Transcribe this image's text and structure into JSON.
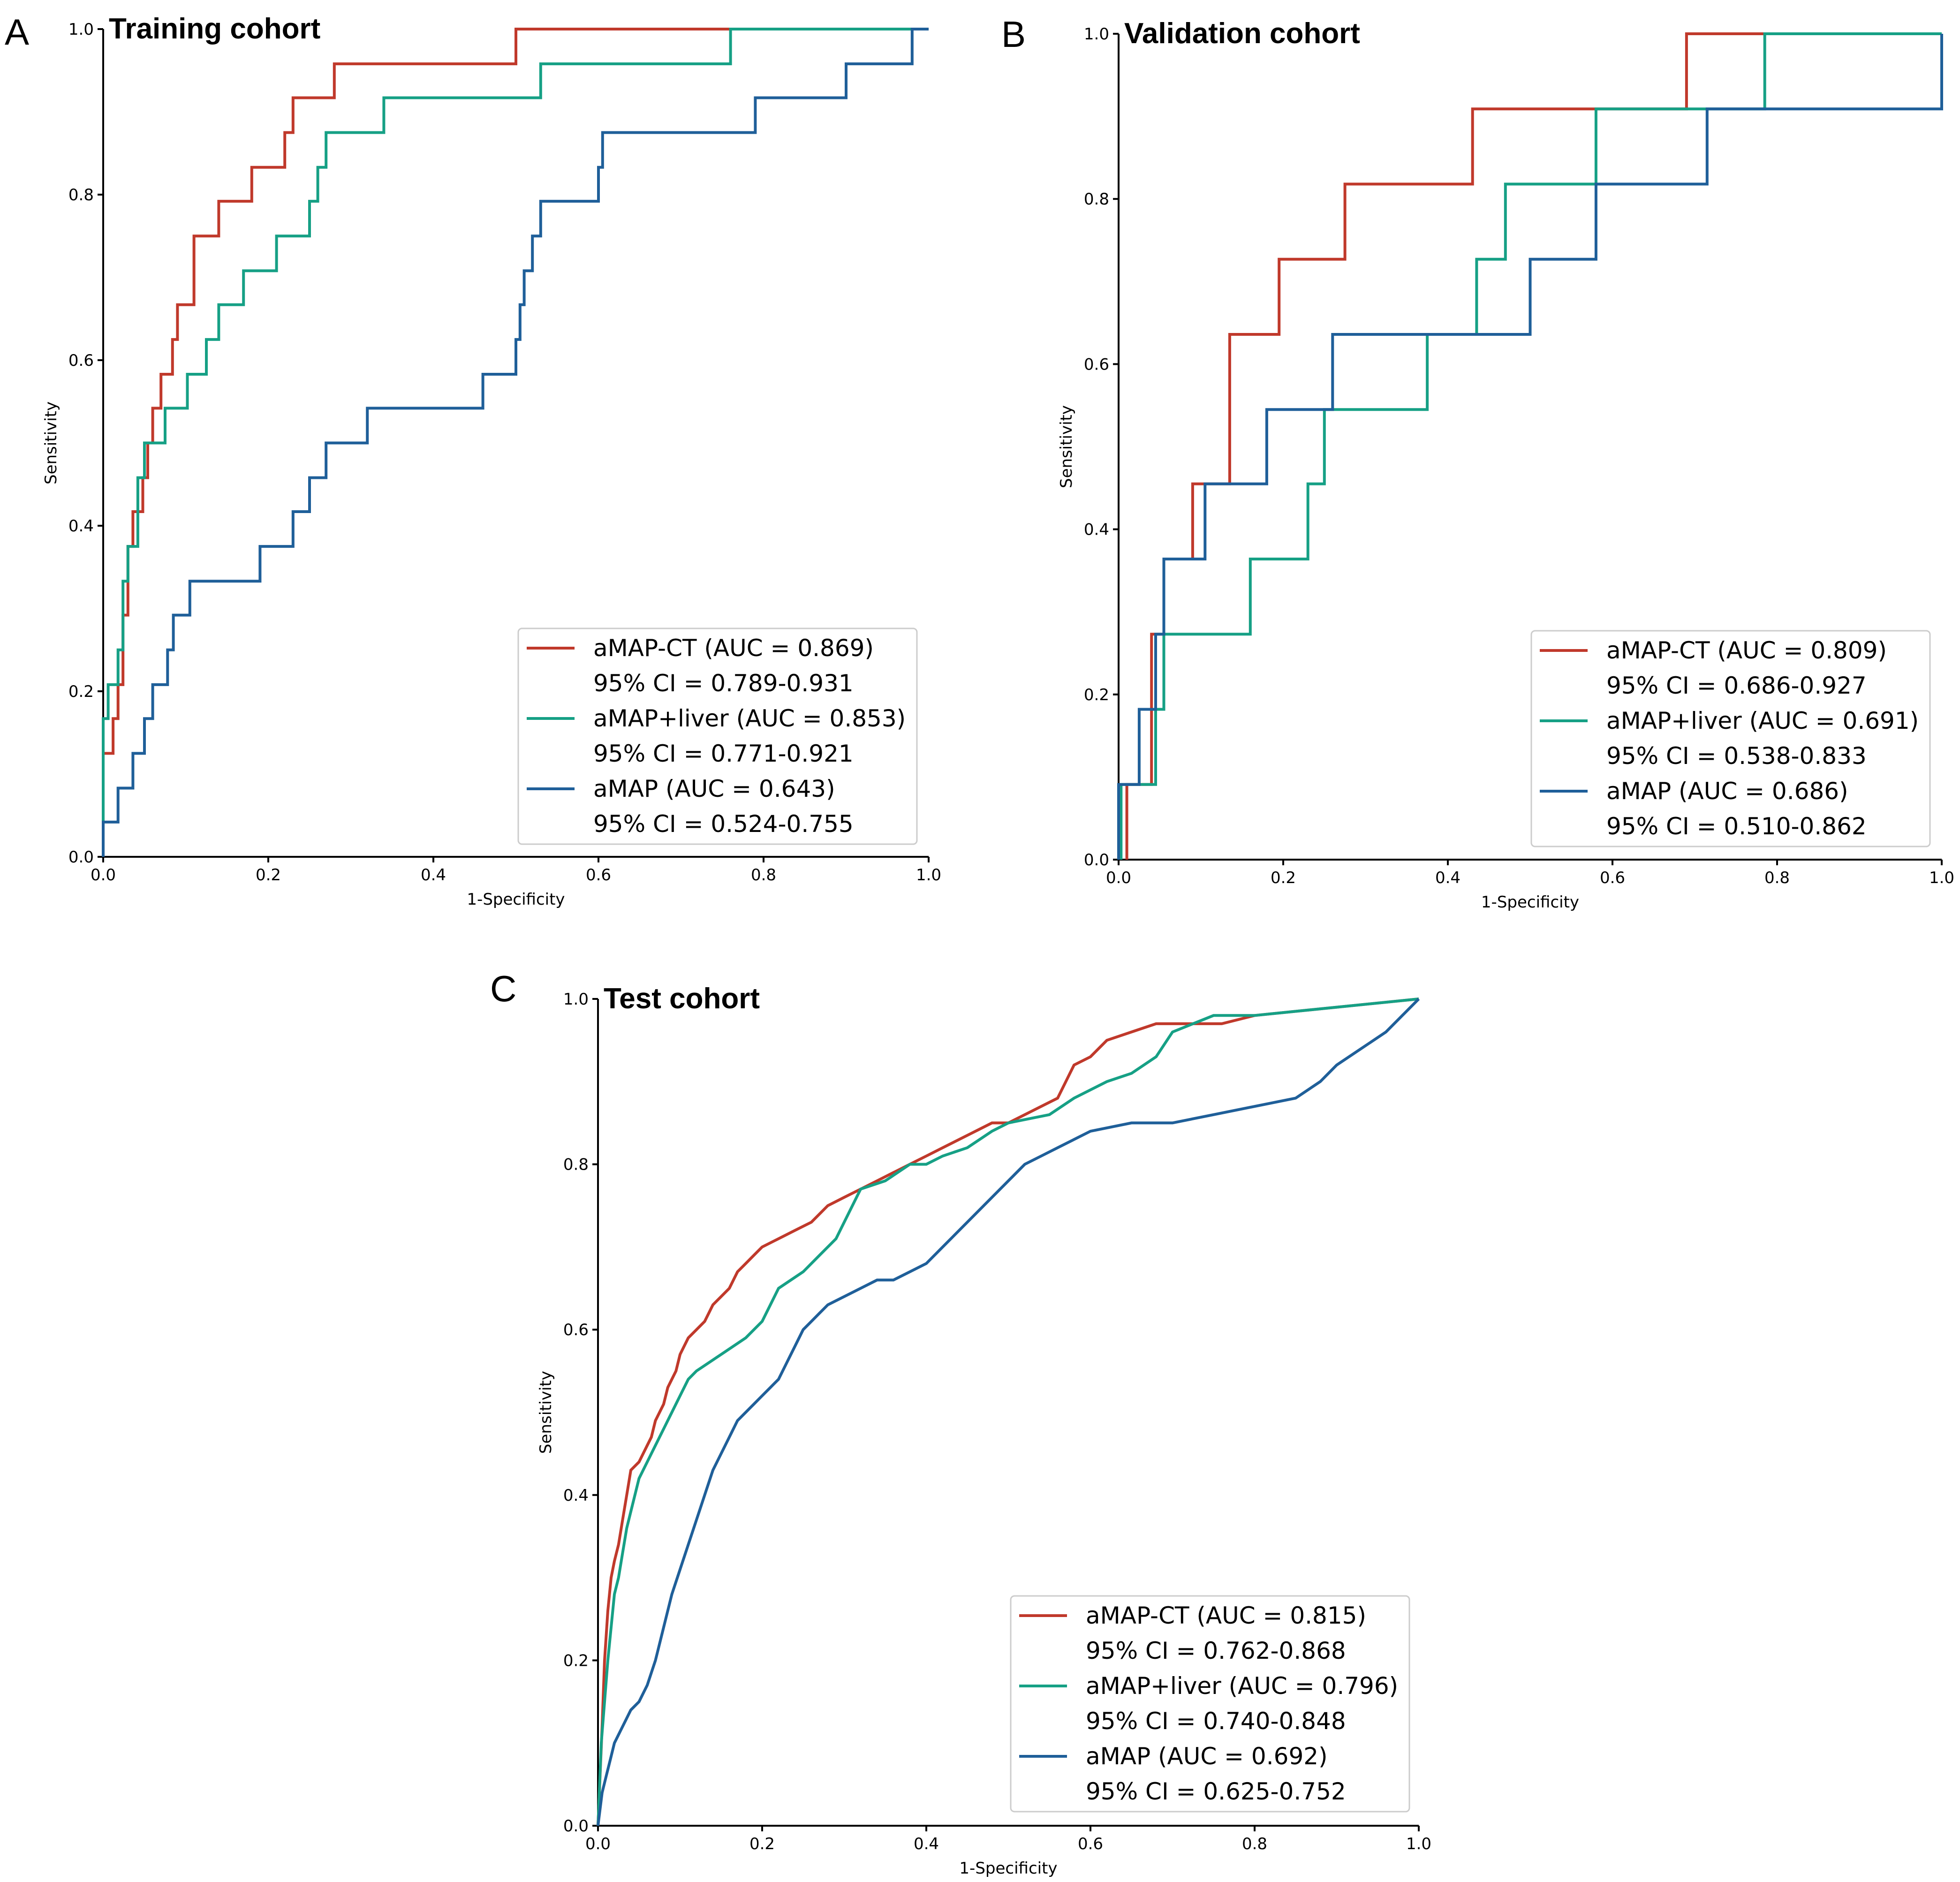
{
  "chart_data": [
    {
      "type": "line",
      "panel_label": "A",
      "title": "Training cohort",
      "xlabel": "1-Specificity",
      "ylabel": "Sensitivity",
      "xlim": [
        0,
        1
      ],
      "ylim": [
        0,
        1
      ],
      "xticks": [
        "0.0",
        "0.2",
        "0.4",
        "0.6",
        "0.8",
        "1.0"
      ],
      "yticks": [
        "0.0",
        "0.2",
        "0.4",
        "0.6",
        "0.8",
        "1.0"
      ],
      "grid": false,
      "legend_position": "lower-right",
      "series": [
        {
          "name": "aMAP-CT (AUC = 0.869)",
          "ci": "95% CI = 0.789-0.931",
          "color": "#c0392b",
          "x": [
            0,
            0,
            0.012,
            0.012,
            0.018,
            0.018,
            0.024,
            0.024,
            0.03,
            0.03,
            0.036,
            0.036,
            0.048,
            0.048,
            0.054,
            0.054,
            0.06,
            0.06,
            0.07,
            0.07,
            0.084,
            0.084,
            0.09,
            0.09,
            0.11,
            0.11,
            0.14,
            0.14,
            0.18,
            0.18,
            0.22,
            0.22,
            0.23,
            0.23,
            0.28,
            0.28,
            0.5,
            0.5,
            0.8,
            0.8,
            1.0
          ],
          "y": [
            0,
            0.125,
            0.125,
            0.167,
            0.167,
            0.208,
            0.208,
            0.292,
            0.292,
            0.375,
            0.375,
            0.417,
            0.417,
            0.458,
            0.458,
            0.5,
            0.5,
            0.542,
            0.542,
            0.583,
            0.583,
            0.625,
            0.625,
            0.667,
            0.667,
            0.75,
            0.75,
            0.792,
            0.792,
            0.833,
            0.833,
            0.875,
            0.875,
            0.917,
            0.917,
            0.958,
            0.958,
            1.0,
            1.0,
            1.0,
            1.0
          ]
        },
        {
          "name": "aMAP+liver (AUC = 0.853)",
          "ci": "95% CI = 0.771-0.921",
          "color": "#16a085",
          "x": [
            0,
            0,
            0.006,
            0.006,
            0.018,
            0.018,
            0.024,
            0.024,
            0.03,
            0.03,
            0.042,
            0.042,
            0.05,
            0.05,
            0.075,
            0.075,
            0.102,
            0.102,
            0.125,
            0.125,
            0.14,
            0.14,
            0.17,
            0.17,
            0.21,
            0.21,
            0.25,
            0.25,
            0.26,
            0.26,
            0.27,
            0.27,
            0.34,
            0.34,
            0.53,
            0.53,
            0.76,
            0.76,
            1.0
          ],
          "y": [
            0,
            0.167,
            0.167,
            0.208,
            0.208,
            0.25,
            0.25,
            0.333,
            0.333,
            0.375,
            0.375,
            0.458,
            0.458,
            0.5,
            0.5,
            0.542,
            0.542,
            0.583,
            0.583,
            0.625,
            0.625,
            0.667,
            0.667,
            0.708,
            0.708,
            0.75,
            0.75,
            0.792,
            0.792,
            0.833,
            0.833,
            0.875,
            0.875,
            0.917,
            0.917,
            0.958,
            0.958,
            1.0,
            1.0
          ]
        },
        {
          "name": "aMAP (AUC = 0.643)",
          "ci": "95% CI = 0.524-0.755",
          "color": "#1f5f99",
          "x": [
            0,
            0,
            0.018,
            0.018,
            0.036,
            0.036,
            0.05,
            0.05,
            0.06,
            0.06,
            0.078,
            0.078,
            0.085,
            0.085,
            0.105,
            0.105,
            0.19,
            0.19,
            0.23,
            0.23,
            0.25,
            0.25,
            0.27,
            0.27,
            0.32,
            0.32,
            0.46,
            0.46,
            0.5,
            0.5,
            0.505,
            0.505,
            0.51,
            0.51,
            0.52,
            0.52,
            0.53,
            0.53,
            0.6,
            0.6,
            0.605,
            0.605,
            0.79,
            0.79,
            0.9,
            0.9,
            0.98,
            0.98,
            1.0
          ],
          "y": [
            0,
            0.042,
            0.042,
            0.083,
            0.083,
            0.125,
            0.125,
            0.167,
            0.167,
            0.208,
            0.208,
            0.25,
            0.25,
            0.292,
            0.292,
            0.333,
            0.333,
            0.375,
            0.375,
            0.417,
            0.417,
            0.458,
            0.458,
            0.5,
            0.5,
            0.542,
            0.542,
            0.583,
            0.583,
            0.625,
            0.625,
            0.667,
            0.667,
            0.708,
            0.708,
            0.75,
            0.75,
            0.792,
            0.792,
            0.833,
            0.833,
            0.875,
            0.875,
            0.917,
            0.917,
            0.958,
            0.958,
            1.0,
            1.0
          ]
        }
      ]
    },
    {
      "type": "line",
      "panel_label": "B",
      "title": "Validation cohort",
      "xlabel": "1-Specificity",
      "ylabel": "Sensitivity",
      "xlim": [
        0,
        1
      ],
      "ylim": [
        0,
        1
      ],
      "xticks": [
        "0.0",
        "0.2",
        "0.4",
        "0.6",
        "0.8",
        "1.0"
      ],
      "yticks": [
        "0.0",
        "0.2",
        "0.4",
        "0.6",
        "0.8",
        "1.0"
      ],
      "grid": false,
      "legend_position": "lower-right",
      "series": [
        {
          "name": "aMAP-CT (AUC = 0.809)",
          "ci": "95% CI = 0.686-0.927",
          "color": "#c0392b",
          "x": [
            0.01,
            0.01,
            0.04,
            0.04,
            0.055,
            0.055,
            0.09,
            0.09,
            0.135,
            0.135,
            0.195,
            0.195,
            0.275,
            0.275,
            0.43,
            0.43,
            0.69,
            0.69,
            1.0
          ],
          "y": [
            0,
            0.091,
            0.091,
            0.273,
            0.273,
            0.364,
            0.364,
            0.455,
            0.455,
            0.636,
            0.636,
            0.727,
            0.727,
            0.818,
            0.818,
            0.909,
            0.909,
            1.0,
            1.0
          ]
        },
        {
          "name": "aMAP+liver (AUC = 0.691)",
          "ci": "95% CI = 0.538-0.833",
          "color": "#16a085",
          "x": [
            0.003,
            0.003,
            0.045,
            0.045,
            0.055,
            0.055,
            0.16,
            0.16,
            0.23,
            0.23,
            0.25,
            0.25,
            0.375,
            0.375,
            0.435,
            0.435,
            0.47,
            0.47,
            0.58,
            0.58,
            0.785,
            0.785,
            1.0
          ],
          "y": [
            0,
            0.091,
            0.091,
            0.182,
            0.182,
            0.273,
            0.273,
            0.364,
            0.364,
            0.455,
            0.455,
            0.545,
            0.545,
            0.636,
            0.636,
            0.727,
            0.727,
            0.818,
            0.818,
            0.909,
            0.909,
            1.0,
            1.0
          ]
        },
        {
          "name": "aMAP (AUC = 0.686)",
          "ci": "95% CI = 0.510-0.862",
          "color": "#1f5f99",
          "x": [
            0,
            0,
            0.025,
            0.025,
            0.045,
            0.045,
            0.055,
            0.055,
            0.105,
            0.105,
            0.18,
            0.18,
            0.26,
            0.26,
            0.5,
            0.5,
            0.58,
            0.58,
            0.715,
            0.715,
            1.0,
            1.0
          ],
          "y": [
            0,
            0.091,
            0.091,
            0.182,
            0.182,
            0.273,
            0.273,
            0.364,
            0.364,
            0.455,
            0.455,
            0.545,
            0.545,
            0.636,
            0.636,
            0.727,
            0.727,
            0.818,
            0.818,
            0.909,
            0.909,
            1.0
          ]
        }
      ]
    },
    {
      "type": "line",
      "panel_label": "C",
      "title": "Test cohort",
      "xlabel": "1-Specificity",
      "ylabel": "Sensitivity",
      "xlim": [
        0,
        1
      ],
      "ylim": [
        0,
        1
      ],
      "xticks": [
        "0.0",
        "0.2",
        "0.4",
        "0.6",
        "0.8",
        "1.0"
      ],
      "yticks": [
        "0.0",
        "0.2",
        "0.4",
        "0.6",
        "0.8",
        "1.0"
      ],
      "grid": false,
      "legend_position": "lower-right",
      "series": [
        {
          "name": "aMAP-CT (AUC = 0.815)",
          "ci": "95% CI = 0.762-0.868",
          "color": "#c0392b",
          "x": [
            0,
            0.005,
            0.008,
            0.012,
            0.016,
            0.02,
            0.025,
            0.03,
            0.035,
            0.04,
            0.05,
            0.06,
            0.065,
            0.07,
            0.075,
            0.08,
            0.085,
            0.09,
            0.095,
            0.1,
            0.11,
            0.12,
            0.13,
            0.14,
            0.15,
            0.16,
            0.17,
            0.18,
            0.19,
            0.2,
            0.22,
            0.24,
            0.26,
            0.28,
            0.3,
            0.32,
            0.34,
            0.36,
            0.38,
            0.4,
            0.42,
            0.44,
            0.46,
            0.48,
            0.5,
            0.52,
            0.54,
            0.56,
            0.57,
            0.58,
            0.6,
            0.62,
            0.65,
            0.68,
            0.72,
            0.76,
            0.8,
            1.0
          ],
          "y": [
            0,
            0.12,
            0.2,
            0.26,
            0.3,
            0.32,
            0.34,
            0.37,
            0.4,
            0.43,
            0.44,
            0.46,
            0.47,
            0.49,
            0.5,
            0.51,
            0.53,
            0.54,
            0.55,
            0.57,
            0.59,
            0.6,
            0.61,
            0.63,
            0.64,
            0.65,
            0.67,
            0.68,
            0.69,
            0.7,
            0.71,
            0.72,
            0.73,
            0.75,
            0.76,
            0.77,
            0.78,
            0.79,
            0.8,
            0.81,
            0.82,
            0.83,
            0.84,
            0.85,
            0.85,
            0.86,
            0.87,
            0.88,
            0.9,
            0.92,
            0.93,
            0.95,
            0.96,
            0.97,
            0.97,
            0.97,
            0.98,
            1.0
          ]
        },
        {
          "name": "aMAP+liver (AUC = 0.796)",
          "ci": "95% CI = 0.740-0.848",
          "color": "#16a085",
          "x": [
            0,
            0.004,
            0.008,
            0.012,
            0.016,
            0.02,
            0.025,
            0.03,
            0.035,
            0.04,
            0.05,
            0.06,
            0.07,
            0.08,
            0.09,
            0.1,
            0.11,
            0.12,
            0.15,
            0.18,
            0.2,
            0.22,
            0.25,
            0.27,
            0.29,
            0.3,
            0.32,
            0.35,
            0.38,
            0.4,
            0.42,
            0.45,
            0.48,
            0.5,
            0.55,
            0.58,
            0.6,
            0.62,
            0.65,
            0.68,
            0.7,
            0.75,
            0.8,
            1.0
          ],
          "y": [
            0,
            0.1,
            0.15,
            0.2,
            0.24,
            0.28,
            0.3,
            0.33,
            0.36,
            0.38,
            0.42,
            0.44,
            0.46,
            0.48,
            0.5,
            0.52,
            0.54,
            0.55,
            0.57,
            0.59,
            0.61,
            0.65,
            0.67,
            0.69,
            0.71,
            0.73,
            0.77,
            0.78,
            0.8,
            0.8,
            0.81,
            0.82,
            0.84,
            0.85,
            0.86,
            0.88,
            0.89,
            0.9,
            0.91,
            0.93,
            0.96,
            0.98,
            0.98,
            1.0
          ]
        },
        {
          "name": "aMAP (AUC = 0.692)",
          "ci": "95% CI = 0.625-0.752",
          "color": "#1f5f99",
          "x": [
            0,
            0.005,
            0.01,
            0.015,
            0.02,
            0.03,
            0.04,
            0.05,
            0.06,
            0.07,
            0.08,
            0.09,
            0.1,
            0.11,
            0.12,
            0.13,
            0.14,
            0.15,
            0.16,
            0.17,
            0.18,
            0.19,
            0.2,
            0.21,
            0.22,
            0.23,
            0.24,
            0.25,
            0.26,
            0.27,
            0.28,
            0.3,
            0.32,
            0.34,
            0.36,
            0.38,
            0.4,
            0.42,
            0.44,
            0.46,
            0.48,
            0.5,
            0.52,
            0.54,
            0.56,
            0.58,
            0.6,
            0.65,
            0.7,
            0.75,
            0.8,
            0.85,
            0.88,
            0.9,
            0.93,
            0.96,
            0.98,
            1.0
          ],
          "y": [
            0,
            0.04,
            0.06,
            0.08,
            0.1,
            0.12,
            0.14,
            0.15,
            0.17,
            0.2,
            0.24,
            0.28,
            0.31,
            0.34,
            0.37,
            0.4,
            0.43,
            0.45,
            0.47,
            0.49,
            0.5,
            0.51,
            0.52,
            0.53,
            0.54,
            0.56,
            0.58,
            0.6,
            0.61,
            0.62,
            0.63,
            0.64,
            0.65,
            0.66,
            0.66,
            0.67,
            0.68,
            0.7,
            0.72,
            0.74,
            0.76,
            0.78,
            0.8,
            0.81,
            0.82,
            0.83,
            0.84,
            0.85,
            0.85,
            0.86,
            0.87,
            0.88,
            0.9,
            0.92,
            0.94,
            0.96,
            0.98,
            1.0
          ]
        }
      ]
    }
  ]
}
